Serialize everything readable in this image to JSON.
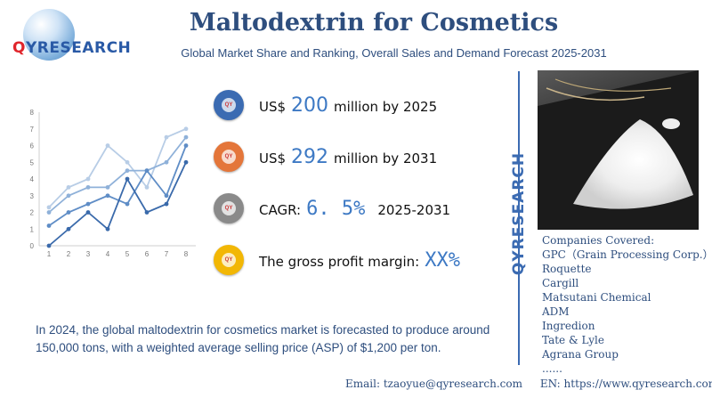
{
  "header": {
    "logo_q": "Q",
    "logo_rest": "YRESEARCH",
    "title": "Maltodextrin for Cosmetics",
    "subtitle": "Global Market Share and Ranking, Overall Sales and Demand Forecast 2025-2031"
  },
  "chart_data": {
    "type": "line",
    "x": [
      1,
      2,
      3,
      4,
      5,
      6,
      7,
      8
    ],
    "ylim": [
      0,
      8
    ],
    "yticks": [
      "0",
      "1",
      "2",
      "3",
      "4",
      "5",
      "6",
      "7",
      "8"
    ],
    "xticks": [
      "1",
      "2",
      "3",
      "4",
      "5",
      "6",
      "7",
      "8"
    ],
    "grid": false,
    "series": [
      {
        "values": [
          2.3,
          3.5,
          4.0,
          6.0,
          5.0,
          3.5,
          6.5,
          7.0
        ],
        "color": "#b8cde6"
      },
      {
        "values": [
          2.0,
          3.0,
          3.5,
          3.5,
          4.5,
          4.5,
          5.0,
          6.5
        ],
        "color": "#8fb1d9"
      },
      {
        "values": [
          1.2,
          2.0,
          2.5,
          3.0,
          2.5,
          4.5,
          3.0,
          6.0
        ],
        "color": "#5f8dc6"
      },
      {
        "values": [
          0.0,
          1.0,
          2.0,
          1.0,
          4.0,
          2.0,
          2.5,
          5.0
        ],
        "color": "#3a6aab"
      }
    ]
  },
  "stats": [
    {
      "prefix": "US$",
      "value": "200",
      "suffix": "million by 2025",
      "icon": "globe-badge-icon",
      "color": "#3b6bb2"
    },
    {
      "prefix": "US$",
      "value": "292",
      "suffix": "million by 2031",
      "icon": "globe-badge-icon",
      "color": "#e4763a"
    },
    {
      "prefix": "CAGR:",
      "value": "6. 5%",
      "suffix": "2025-2031",
      "icon": "globe-badge-icon",
      "color": "#8a8a8a"
    },
    {
      "prefix": "The gross profit margin:",
      "value": "XX%",
      "suffix": "",
      "icon": "globe-badge-icon",
      "color": "#f2b705"
    }
  ],
  "brand_vertical": "QYRESEARCH",
  "photo_icon": "maltodextrin-powder-photo",
  "companies": {
    "heading": "Companies Covered:",
    "items": [
      "GPC（Grain Processing Corp.）",
      "Roquette",
      "Cargill",
      "Matsutani Chemical",
      "ADM",
      "Ingredion",
      "Tate & Lyle",
      "Agrana Group",
      "......"
    ]
  },
  "description": "In 2024, the global maltodextrin for cosmetics market is forecasted to produce around 150,000 tons, with a weighted average selling price (ASP) of $1,200 per ton.",
  "footer": {
    "email": "Email: tzaoyue@qyresearch.com",
    "website": "EN: https://www.qyresearch.com"
  }
}
